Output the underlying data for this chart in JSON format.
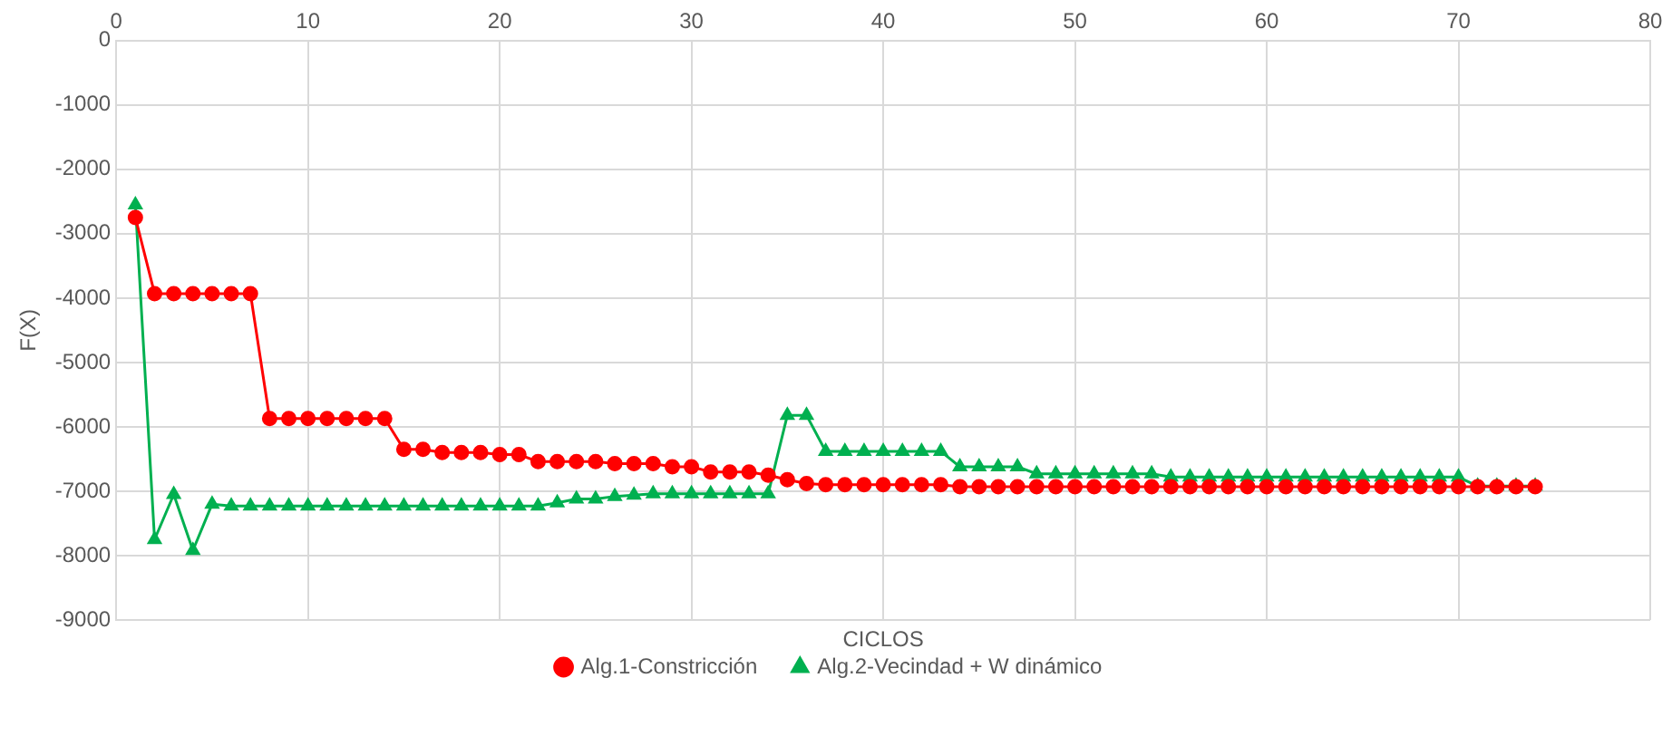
{
  "chart_data": {
    "type": "line",
    "xlabel": "CICLOS",
    "ylabel": "F(X)",
    "xlim": [
      0,
      80
    ],
    "xticks": [
      0,
      10,
      20,
      30,
      40,
      50,
      60,
      70,
      80
    ],
    "ylim": [
      -9000,
      0
    ],
    "yticks": [
      0,
      -1000,
      -2000,
      -3000,
      -4000,
      -5000,
      -6000,
      -7000,
      -8000,
      -9000
    ],
    "grid": true,
    "legend": "bottom",
    "x": [
      1,
      2,
      3,
      4,
      5,
      6,
      7,
      8,
      9,
      10,
      11,
      12,
      13,
      14,
      15,
      16,
      17,
      18,
      19,
      20,
      21,
      22,
      23,
      24,
      25,
      26,
      27,
      28,
      29,
      30,
      31,
      32,
      33,
      34,
      35,
      36,
      37,
      38,
      39,
      40,
      41,
      42,
      43,
      44,
      45,
      46,
      47,
      48,
      49,
      50,
      51,
      52,
      53,
      54,
      55,
      56,
      57,
      58,
      59,
      60,
      61,
      62,
      63,
      64,
      65,
      66,
      67,
      68,
      69,
      70,
      71,
      72,
      73,
      74
    ],
    "series": [
      {
        "name": "Alg.1-Constricción",
        "color": "#ff0000",
        "marker": "circle",
        "values": [
          -2750,
          -3930,
          -3930,
          -3930,
          -3930,
          -3930,
          -3930,
          -5870,
          -5870,
          -5870,
          -5870,
          -5870,
          -5870,
          -5870,
          -6350,
          -6350,
          -6400,
          -6400,
          -6400,
          -6430,
          -6430,
          -6540,
          -6540,
          -6540,
          -6540,
          -6570,
          -6570,
          -6570,
          -6620,
          -6620,
          -6700,
          -6700,
          -6700,
          -6750,
          -6820,
          -6880,
          -6900,
          -6900,
          -6900,
          -6900,
          -6900,
          -6900,
          -6900,
          -6930,
          -6930,
          -6930,
          -6930,
          -6930,
          -6930,
          -6930,
          -6930,
          -6930,
          -6930,
          -6930,
          -6930,
          -6930,
          -6930,
          -6930,
          -6930,
          -6930,
          -6930,
          -6930,
          -6930,
          -6930,
          -6930,
          -6930,
          -6930,
          -6930,
          -6930,
          -6930,
          -6930,
          -6930,
          -6930,
          -6930
        ]
      },
      {
        "name": "Alg.2-Vecindad + W dinámico",
        "color": "#00b050",
        "marker": "triangle",
        "values": [
          -2550,
          -7750,
          -7050,
          -7920,
          -7200,
          -7230,
          -7230,
          -7230,
          -7230,
          -7230,
          -7230,
          -7230,
          -7230,
          -7230,
          -7230,
          -7230,
          -7230,
          -7230,
          -7230,
          -7230,
          -7230,
          -7230,
          -7180,
          -7120,
          -7120,
          -7080,
          -7060,
          -7040,
          -7040,
          -7040,
          -7040,
          -7040,
          -7040,
          -7040,
          -5820,
          -5820,
          -6380,
          -6380,
          -6380,
          -6380,
          -6380,
          -6380,
          -6380,
          -6620,
          -6620,
          -6620,
          -6620,
          -6730,
          -6730,
          -6730,
          -6730,
          -6730,
          -6730,
          -6730,
          -6780,
          -6780,
          -6780,
          -6780,
          -6780,
          -6780,
          -6780,
          -6780,
          -6780,
          -6780,
          -6780,
          -6780,
          -6780,
          -6780,
          -6780,
          -6780,
          -6920,
          -6920,
          -6920,
          -6920
        ]
      }
    ]
  }
}
